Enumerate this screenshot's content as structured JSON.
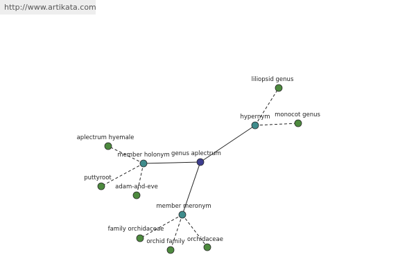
{
  "header": {
    "url": "http://www.artikata.com"
  },
  "nodes": [
    {
      "label": "genus aplectrum"
    },
    {
      "label": "hypernym"
    },
    {
      "label": "liliopsid genus"
    },
    {
      "label": "monocot genus"
    },
    {
      "label": "member holonym"
    },
    {
      "label": "aplectrum hyemale"
    },
    {
      "label": "puttyroot"
    },
    {
      "label": "adam-and-eve"
    },
    {
      "label": "member meronym"
    },
    {
      "label": "family orchidaceae"
    },
    {
      "label": "orchid family"
    },
    {
      "label": "orchidaceae"
    }
  ]
}
